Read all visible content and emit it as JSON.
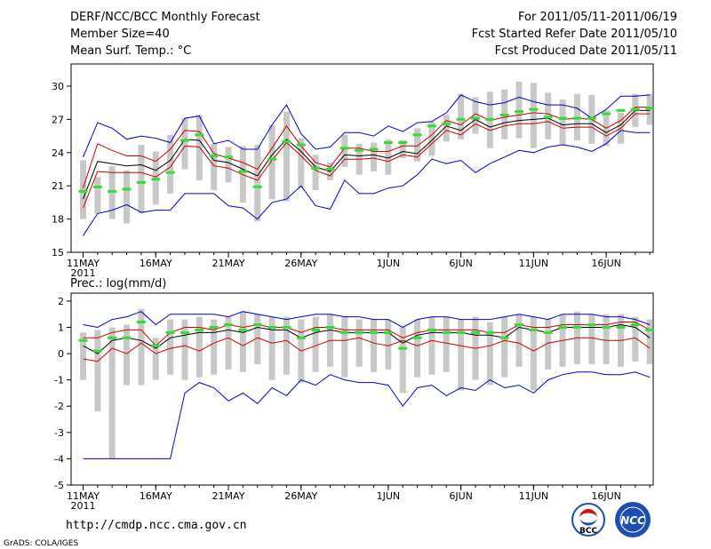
{
  "header": {
    "title": "DERF/NCC/BCC Monthly Forecast",
    "member_size": "Member Size=40",
    "variable": "Mean Surf. Temp.: °C",
    "period": "For 2011/05/11-2011/06/19",
    "start_date": "Fcst Started Refer Date 2011/05/10",
    "produced_date": "Fcst Produced Date 2011/05/11"
  },
  "footer": {
    "url": "http://cmdp.ncc.cma.gov.cn",
    "credit": "GrADS: COLA/IGES",
    "logo_bcc_text": "BCC",
    "logo_ncc_text": "NCC"
  },
  "chart_data": [
    {
      "type": "line",
      "name": "temperature",
      "title": "Mean Surf. Temp.: °C",
      "ylim": [
        15,
        32
      ],
      "yticks": [
        15,
        18,
        21,
        24,
        27,
        30
      ],
      "x_tick_labels": [
        "11MAY",
        "16MAY",
        "21MAY",
        "26MAY",
        "1JUN",
        "6JUN",
        "11JUN",
        "16JUN"
      ],
      "x_tick_days": [
        0,
        5,
        10,
        15,
        21,
        26,
        31,
        36
      ],
      "year_label": "2011",
      "days": 40,
      "series": [
        {
          "name": "max",
          "color": "#0000cc",
          "values": [
            16.5,
            18.5,
            18.8,
            19.3,
            18.6,
            18.8,
            18.8,
            20.3,
            20.3,
            20.3,
            19.2,
            19.0,
            18.0,
            19.5,
            19.8,
            21.0,
            19.2,
            18.9,
            21.5,
            20.3,
            20.3,
            20.8,
            21.0,
            22.0,
            23.4,
            23.0,
            23.3,
            22.2,
            23.0,
            23.6,
            24.2,
            24.0,
            24.5,
            24.7,
            24.5,
            24.1,
            24.8,
            26.0,
            25.8,
            25.8
          ]
        },
        {
          "name": "mean_minus_sd",
          "color": "#cc0000",
          "values": [
            19.0,
            22.3,
            22.2,
            22.2,
            22.2,
            21.8,
            22.7,
            24.6,
            24.5,
            22.8,
            22.6,
            22.0,
            21.5,
            23.3,
            24.9,
            23.7,
            22.4,
            21.9,
            23.4,
            23.4,
            23.5,
            23.2,
            23.8,
            23.6,
            24.8,
            26.0,
            25.6,
            26.6,
            26.0,
            26.4,
            26.6,
            26.6,
            26.8,
            26.2,
            26.3,
            26.3,
            25.5,
            26.2,
            27.5,
            27.5
          ]
        },
        {
          "name": "ensemble_mean",
          "color": "#000000",
          "values": [
            19.8,
            23.2,
            23.0,
            22.8,
            22.9,
            22.4,
            23.3,
            25.2,
            25.1,
            23.3,
            23.1,
            22.5,
            21.9,
            23.8,
            25.2,
            24.1,
            22.7,
            22.3,
            23.8,
            23.7,
            23.8,
            23.5,
            24.1,
            23.9,
            25.1,
            26.4,
            26.0,
            27.0,
            26.3,
            26.7,
            26.9,
            27.0,
            27.1,
            26.5,
            26.6,
            26.6,
            25.8,
            26.5,
            27.8,
            27.8
          ]
        },
        {
          "name": "mean_plus_sd",
          "color": "#cc0000",
          "values": [
            20.8,
            24.8,
            24.2,
            23.7,
            23.7,
            23.2,
            24.3,
            26.0,
            25.9,
            23.9,
            23.5,
            23.1,
            22.5,
            24.4,
            26.4,
            24.6,
            23.1,
            22.7,
            24.4,
            24.4,
            24.1,
            24.1,
            24.6,
            24.6,
            25.6,
            26.9,
            26.5,
            27.5,
            26.9,
            27.2,
            27.4,
            27.6,
            27.5,
            27.0,
            27.1,
            27.0,
            26.2,
            26.9,
            28.1,
            28.1
          ]
        },
        {
          "name": "min",
          "color": "#0000cc",
          "values": [
            23.6,
            26.7,
            26.2,
            25.2,
            25.5,
            25.3,
            24.9,
            27.1,
            27.3,
            24.8,
            25.1,
            24.3,
            24.3,
            26.5,
            28.3,
            25.7,
            24.3,
            24.5,
            25.8,
            25.8,
            25.5,
            26.4,
            25.9,
            26.7,
            26.8,
            27.6,
            29.2,
            28.6,
            28.3,
            28.5,
            29.0,
            28.6,
            28.3,
            28.3,
            28.0,
            27.1,
            27.9,
            29.1,
            29.1,
            29.2
          ]
        }
      ],
      "bar_low": [
        18.0,
        18.5,
        18.0,
        17.6,
        18.5,
        19.3,
        20.3,
        22.5,
        21.5,
        20.6,
        21.3,
        19.5,
        17.8,
        19.8,
        19.6,
        20.8,
        20.6,
        21.5,
        22.7,
        22.0,
        22.3,
        22.0,
        23.5,
        23.2,
        23.7,
        25.0,
        25.2,
        25.7,
        24.4,
        25.2,
        25.3,
        24.4,
        25.2,
        24.7,
        25.1,
        24.8,
        24.6,
        24.8,
        26.3,
        26.5
      ],
      "bar_high": [
        23.3,
        21.8,
        22.8,
        22.4,
        24.7,
        24.1,
        25.6,
        27.1,
        27.4,
        24.8,
        24.5,
        24.6,
        24.7,
        26.5,
        27.7,
        25.3,
        23.8,
        23.1,
        25.6,
        24.8,
        24.9,
        25.2,
        25.1,
        26.2,
        26.8,
        27.4,
        29.3,
        29.0,
        29.5,
        29.7,
        30.4,
        30.3,
        29.4,
        28.8,
        29.3,
        29.2,
        27.8,
        27.6,
        29.3,
        29.3
      ],
      "observed": [
        20.5,
        20.9,
        20.5,
        20.7,
        21.3,
        21.6,
        22.2,
        25.1,
        25.6,
        23.7,
        23.6,
        22.3,
        20.9,
        23.4,
        25.0,
        24.7,
        22.6,
        22.5,
        24.4,
        24.2,
        24.3,
        24.9,
        24.9,
        25.6,
        26.4,
        26.6,
        27.0,
        27.1,
        27.0,
        27.4,
        27.7,
        27.9,
        27.2,
        27.1,
        27.1,
        27.1,
        27.5,
        27.8,
        27.9,
        28.0
      ]
    },
    {
      "type": "line",
      "name": "precipitation",
      "title": "Prec.: log(mm/d)",
      "ylim": [
        -5,
        2.3
      ],
      "yticks": [
        -5,
        -4,
        -3,
        -2,
        -1,
        0,
        1,
        2
      ],
      "x_tick_labels": [
        "11MAY",
        "16MAY",
        "21MAY",
        "26MAY",
        "1JUN",
        "6JUN",
        "11JUN",
        "16JUN"
      ],
      "x_tick_days": [
        0,
        5,
        10,
        15,
        21,
        26,
        31,
        36
      ],
      "year_label": "2011",
      "days": 40,
      "series": [
        {
          "name": "max",
          "color": "#0000cc",
          "values": [
            -4.0,
            -4.0,
            -4.0,
            -4.0,
            -4.0,
            -4.0,
            -4.0,
            -1.5,
            -1.1,
            -1.3,
            -1.8,
            -1.5,
            -1.9,
            -1.3,
            -1.6,
            -1.0,
            -1.2,
            -0.8,
            -1.0,
            -1.1,
            -1.1,
            -1.2,
            -2.0,
            -1.3,
            -1.2,
            -1.6,
            -1.3,
            -1.4,
            -1.0,
            -1.3,
            -1.2,
            -1.5,
            -1.0,
            -0.8,
            -0.7,
            -0.7,
            -0.8,
            -0.8,
            -0.7,
            -0.9
          ]
        },
        {
          "name": "mean_minus_sd",
          "color": "#cc0000",
          "values": [
            -0.2,
            -0.3,
            0.2,
            0.0,
            0.4,
            0.0,
            0.2,
            0.3,
            0.1,
            0.4,
            0.6,
            0.3,
            0.6,
            0.4,
            0.5,
            0.1,
            0.3,
            0.5,
            0.5,
            0.6,
            0.4,
            0.3,
            0.5,
            0.3,
            0.5,
            0.4,
            0.3,
            0.2,
            0.3,
            0.5,
            0.4,
            0.1,
            0.4,
            0.5,
            0.6,
            0.6,
            0.5,
            0.5,
            0.6,
            0.2
          ]
        },
        {
          "name": "ensemble_mean",
          "color": "#000000",
          "values": [
            0.3,
            0.0,
            0.5,
            0.6,
            0.5,
            0.2,
            0.6,
            0.7,
            0.8,
            0.8,
            0.9,
            0.8,
            1.0,
            0.9,
            0.9,
            0.6,
            0.8,
            0.9,
            0.8,
            0.8,
            0.8,
            0.8,
            0.4,
            0.7,
            0.8,
            0.8,
            0.8,
            0.7,
            0.7,
            0.6,
            1.0,
            0.9,
            0.8,
            1.0,
            1.0,
            1.0,
            1.0,
            1.1,
            1.0,
            0.6
          ]
        },
        {
          "name": "mean_plus_sd",
          "color": "#cc0000",
          "values": [
            0.6,
            0.6,
            0.8,
            0.9,
            0.9,
            0.3,
            0.8,
            1.0,
            1.0,
            0.9,
            1.1,
            1.0,
            1.1,
            1.0,
            1.0,
            0.8,
            1.0,
            1.0,
            0.9,
            0.9,
            0.9,
            0.9,
            0.6,
            0.8,
            0.9,
            0.9,
            0.9,
            0.9,
            0.8,
            0.8,
            1.1,
            1.0,
            1.0,
            1.1,
            1.1,
            1.1,
            1.1,
            1.2,
            1.2,
            0.9
          ]
        },
        {
          "name": "min",
          "color": "#0000cc",
          "values": [
            1.1,
            1.0,
            1.3,
            1.4,
            1.6,
            1.1,
            1.5,
            1.5,
            1.5,
            1.5,
            1.4,
            1.6,
            1.5,
            1.4,
            1.3,
            1.4,
            1.5,
            1.5,
            1.4,
            1.4,
            1.3,
            1.3,
            1.0,
            1.3,
            1.4,
            1.4,
            1.3,
            1.3,
            1.3,
            1.4,
            1.5,
            1.4,
            1.3,
            1.5,
            1.5,
            1.5,
            1.4,
            1.4,
            1.3,
            1.1
          ]
        }
      ],
      "bar_low": [
        -1.0,
        -2.2,
        -4.0,
        -1.2,
        -1.2,
        -1.0,
        -0.8,
        -1.0,
        -0.9,
        -0.8,
        -0.6,
        -0.7,
        -0.4,
        -1.0,
        -0.8,
        -1.1,
        -0.7,
        -0.5,
        -0.9,
        -0.5,
        -0.7,
        -0.6,
        -1.5,
        -0.9,
        -0.8,
        -0.7,
        -1.4,
        -1.0,
        -1.2,
        -0.9,
        -0.5,
        -1.4,
        -0.6,
        -0.5,
        -0.4,
        -0.4,
        -0.4,
        -0.5,
        -0.3,
        -0.4
      ],
      "bar_high": [
        0.8,
        0.9,
        1.0,
        1.1,
        1.7,
        0.6,
        1.3,
        1.3,
        1.4,
        1.3,
        1.4,
        1.6,
        1.5,
        1.4,
        1.4,
        1.3,
        1.4,
        1.5,
        1.4,
        1.3,
        1.3,
        1.3,
        1.0,
        1.3,
        1.4,
        1.4,
        1.3,
        1.4,
        1.2,
        1.4,
        1.5,
        1.4,
        1.3,
        1.5,
        1.6,
        1.5,
        1.5,
        1.5,
        1.4,
        1.3
      ],
      "observed": [
        0.5,
        0.1,
        0.6,
        0.6,
        1.2,
        0.3,
        0.8,
        0.8,
        0.9,
        1.0,
        1.1,
        0.9,
        1.1,
        1.0,
        1.0,
        0.6,
        0.9,
        1.0,
        0.8,
        0.8,
        0.8,
        0.8,
        0.2,
        0.6,
        0.9,
        0.8,
        0.8,
        0.8,
        0.8,
        0.6,
        1.1,
        0.9,
        0.8,
        1.0,
        1.0,
        1.1,
        1.0,
        1.0,
        1.1,
        0.9
      ]
    }
  ]
}
